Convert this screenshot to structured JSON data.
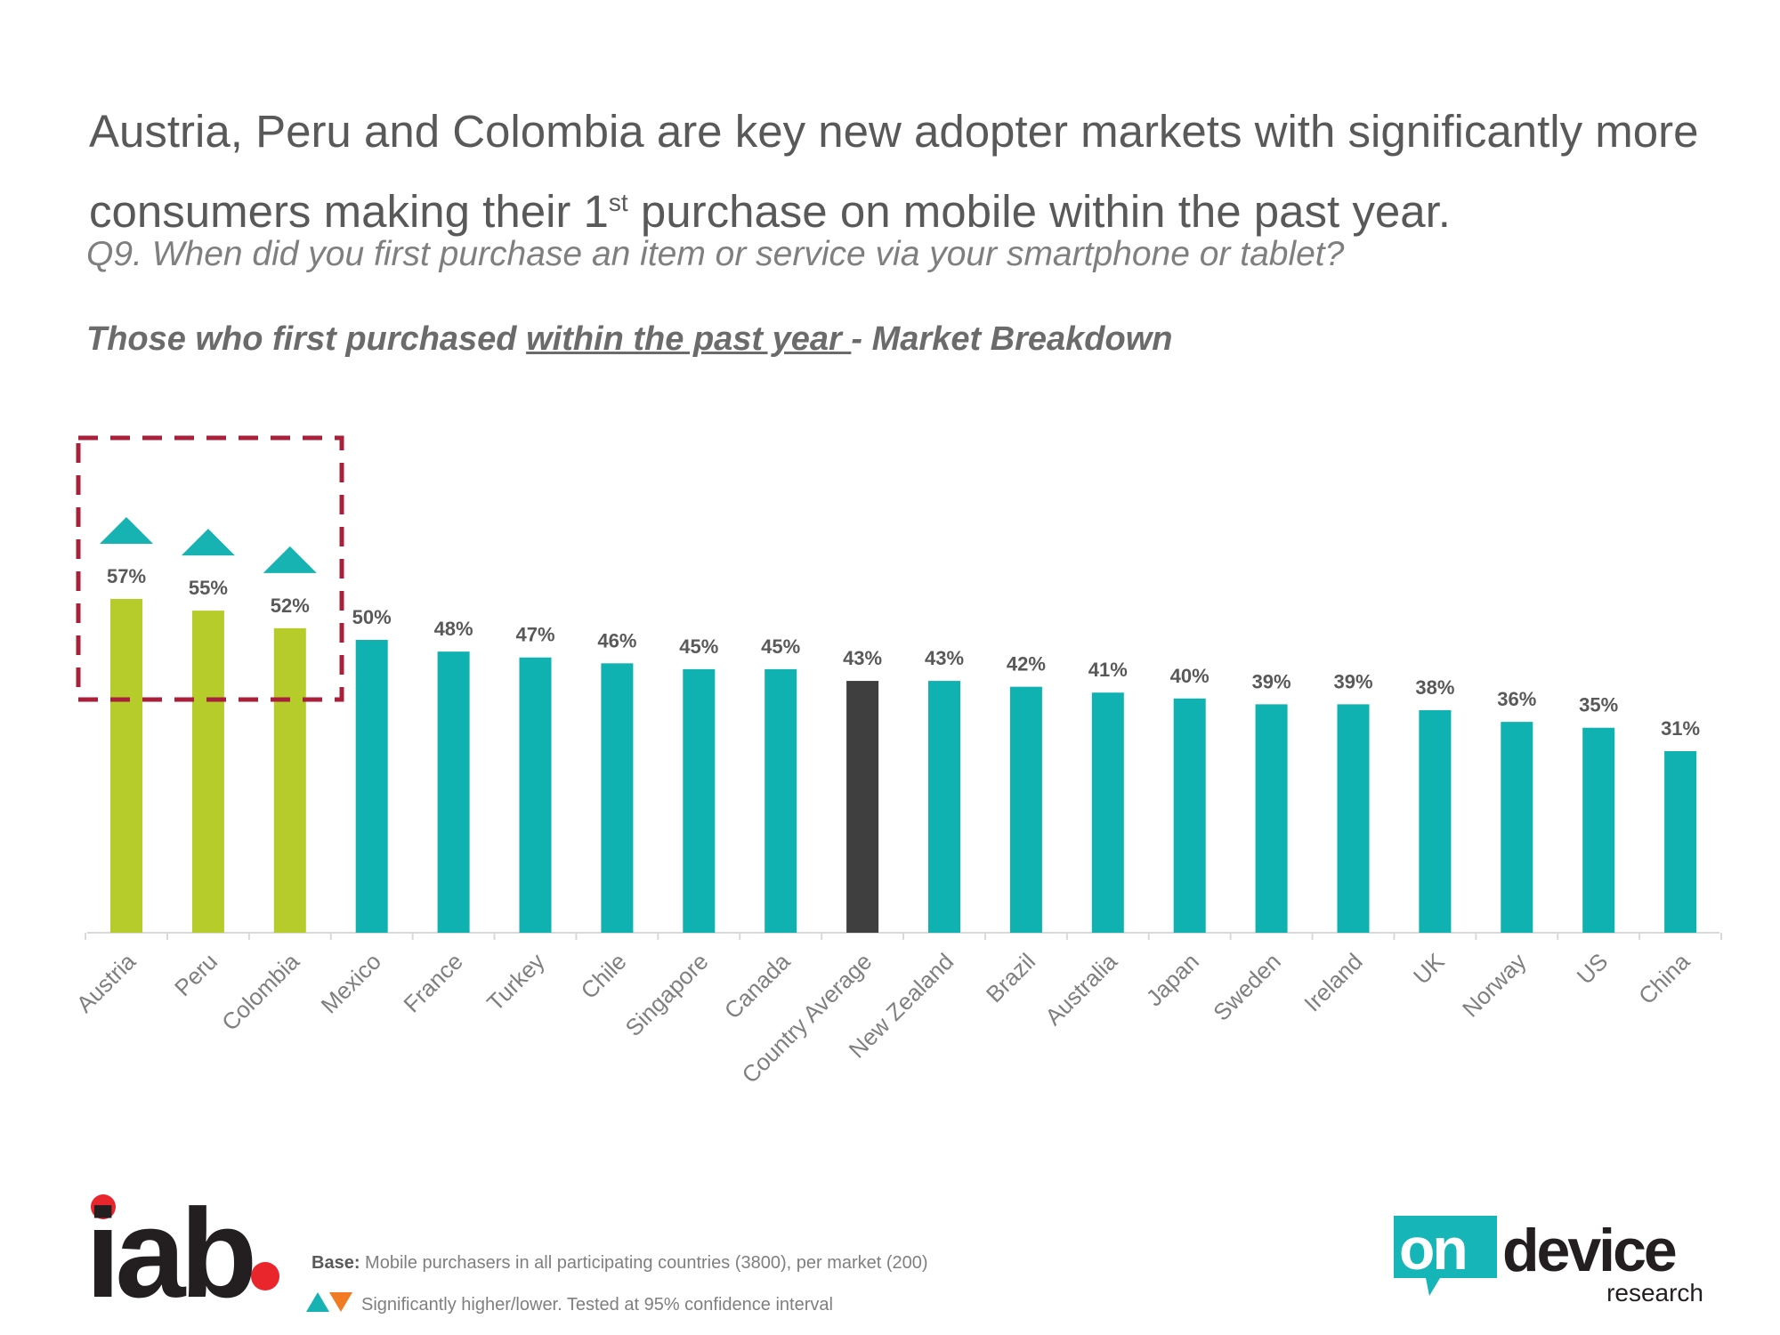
{
  "headline": {
    "line1": "Austria, Peru and Colombia are key new adopter markets with significantly more",
    "line2_pre": "consumers making their 1",
    "line2_sup": "st",
    "line2_post": " purchase on mobile within the past year."
  },
  "question": "Q9. When did you first purchase an item or service via your smartphone or tablet?",
  "subtitle": {
    "pre": "Those who first purchased ",
    "underlined": "within the past year ",
    "post": "- Market Breakdown"
  },
  "colors": {
    "highlight": "#b5cc2b",
    "standard": "#0fb1b1",
    "average": "#3f3f3f",
    "box": "#a8203a",
    "higher": "#17b2b2",
    "lower": "#f07b22"
  },
  "chart_data": {
    "type": "bar",
    "title": "Those who first purchased within the past year - Market Breakdown",
    "xlabel": "",
    "ylabel": "",
    "ylim": [
      0,
      100
    ],
    "grid": false,
    "categories": [
      "Austria",
      "Peru",
      "Colombia",
      "Mexico",
      "France",
      "Turkey",
      "Chile",
      "Singapore",
      "Canada",
      "Country Average",
      "New Zealand",
      "Brazil",
      "Australia",
      "Japan",
      "Sweden",
      "Ireland",
      "UK",
      "Norway",
      "US",
      "China"
    ],
    "values": [
      57,
      55,
      52,
      50,
      48,
      47,
      46,
      45,
      45,
      43,
      43,
      42,
      41,
      40,
      39,
      39,
      38,
      36,
      35,
      31
    ],
    "value_labels": [
      "57%",
      "55%",
      "52%",
      "50%",
      "48%",
      "47%",
      "46%",
      "45%",
      "45%",
      "43%",
      "43%",
      "42%",
      "41%",
      "40%",
      "39%",
      "39%",
      "38%",
      "36%",
      "35%",
      "31%"
    ],
    "bar_group": [
      "highlight",
      "highlight",
      "highlight",
      "standard",
      "standard",
      "standard",
      "standard",
      "standard",
      "standard",
      "average",
      "standard",
      "standard",
      "standard",
      "standard",
      "standard",
      "standard",
      "standard",
      "standard",
      "standard",
      "standard"
    ],
    "significantly_higher": [
      "Austria",
      "Peru",
      "Colombia"
    ],
    "annotation": "Austria, Peru and Colombia highlighted"
  },
  "logos": {
    "iab": "iab",
    "ondevice_on": "on",
    "ondevice_device": "device",
    "ondevice_research": "research"
  },
  "footer": {
    "base_label": "Base:",
    "base_text": " Mobile purchasers in all participating countries (3800), per market (200)",
    "legend_text": "Significantly higher/lower. Tested at 95% confidence interval"
  }
}
